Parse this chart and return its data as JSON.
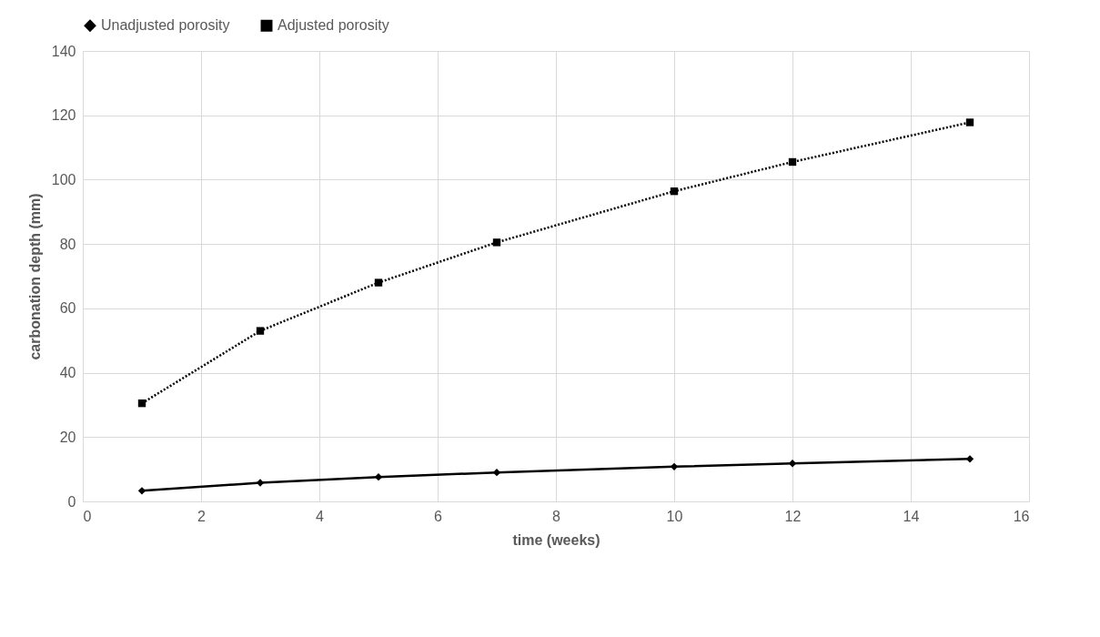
{
  "chart_data": {
    "type": "line",
    "xlabel": "time (weeks)",
    "ylabel": "carbonation depth (mm)",
    "x": [
      1,
      3,
      5,
      7,
      10,
      12,
      15
    ],
    "series": [
      {
        "name": "Unadjusted porosity",
        "color": "#000000",
        "marker": "diamond",
        "line_style": "solid",
        "values": [
          3.3,
          5.8,
          7.6,
          9.0,
          10.8,
          11.8,
          13.2
        ]
      },
      {
        "name": "Adjusted porosity",
        "color": "#000000",
        "marker": "square",
        "line_style": "dotted",
        "values": [
          30.5,
          53,
          68,
          80.5,
          96.4,
          105.5,
          117.8
        ]
      }
    ],
    "xlim": [
      0,
      16
    ],
    "xticks": [
      0,
      2,
      4,
      6,
      8,
      10,
      12,
      14,
      16
    ],
    "ylim": [
      0,
      140
    ],
    "yticks": [
      0,
      20,
      40,
      60,
      80,
      100,
      120,
      140
    ],
    "grid": true,
    "legend": "top"
  }
}
